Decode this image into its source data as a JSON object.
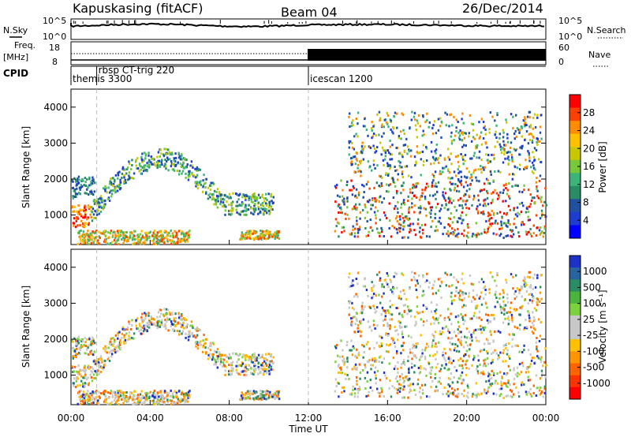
{
  "header": {
    "station": "Kapuskasing (fitACF)",
    "beam": "Beam 04",
    "date": "26/Dec/2014"
  },
  "top_panels": {
    "nsky_label": "N.Sky",
    "nsky_ticks": [
      "10^5",
      "10^0"
    ],
    "nsky_right_ticks": [
      "10^5",
      "10^0"
    ],
    "nsearch_label": "N.Search",
    "freq_label_1": "Freq.",
    "freq_label_2": "[MHz]",
    "freq_ticks": [
      "18",
      "8"
    ],
    "nave_ticks": [
      "60",
      "0"
    ],
    "nave_label": "Nave",
    "cpid_label": "CPID",
    "cpid_segments": [
      {
        "name": "themis 3300",
        "start_hour": 0
      },
      {
        "name": "rbsp CT-trig 220",
        "start_hour": 1.3
      },
      {
        "name": "icescan 1200",
        "start_hour": 12
      }
    ]
  },
  "axes": {
    "ylabel": "Slant Range [km]",
    "xlabel": "Time UT",
    "y_ticks": [
      "1000",
      "2000",
      "3000",
      "4000"
    ],
    "x_ticks": [
      "00:00",
      "04:00",
      "08:00",
      "12:00",
      "16:00",
      "20:00",
      "00:00"
    ]
  },
  "power_colorbar": {
    "label": "Power [dB]",
    "ticks": [
      "28",
      "24",
      "20",
      "16",
      "12",
      "8",
      "4"
    ],
    "colors": [
      "#ff0000",
      "#ff4000",
      "#ff8c00",
      "#ffc000",
      "#c8c800",
      "#78c83c",
      "#3cb478",
      "#2a8c64",
      "#2050a0",
      "#1e3cd0",
      "#0000ff"
    ]
  },
  "velocity_colorbar": {
    "label": "Velocity [m s⁻¹]",
    "ticks": [
      "1000",
      "500",
      "100",
      "25",
      "-25",
      "-100",
      "-500",
      "-1000"
    ],
    "colors": [
      "#1e32c8",
      "#2a64a0",
      "#2a8c64",
      "#4ab43c",
      "#7cd23c",
      "#c8c8c8",
      "#c8c8c8",
      "#ffc000",
      "#ff9600",
      "#ff6400",
      "#ff3200",
      "#ff0000"
    ]
  },
  "chart_data": {
    "type": "heatmap",
    "x_range_hours": [
      0,
      24
    ],
    "y_range_km": [
      180,
      4500
    ],
    "y_ticks_km": [
      1000,
      2000,
      3000,
      4000
    ],
    "x_ticks_hours": [
      0,
      4,
      8,
      12,
      16,
      20,
      24
    ],
    "gridlines": false,
    "power_scatter_regions": [
      {
        "t0": 0.0,
        "t1": 1.2,
        "r0": 1500,
        "r1": 2100,
        "level": "low"
      },
      {
        "t0": 0.0,
        "t1": 1.0,
        "r0": 700,
        "r1": 1300,
        "level": "high"
      },
      {
        "t0": 1.0,
        "t1": 10.2,
        "r0": 1400,
        "r1": 3000,
        "level": "arc"
      },
      {
        "t0": 0.3,
        "t1": 6.0,
        "r0": 220,
        "r1": 600,
        "level": "mid"
      },
      {
        "t0": 8.5,
        "t1": 10.5,
        "r0": 350,
        "r1": 600,
        "level": "mid"
      },
      {
        "t0": 13.3,
        "t1": 24.0,
        "r0": 400,
        "r1": 2000,
        "level": "mixed"
      },
      {
        "t0": 14.0,
        "t1": 23.8,
        "r0": 2000,
        "r1": 3900,
        "level": "sparse"
      }
    ]
  }
}
